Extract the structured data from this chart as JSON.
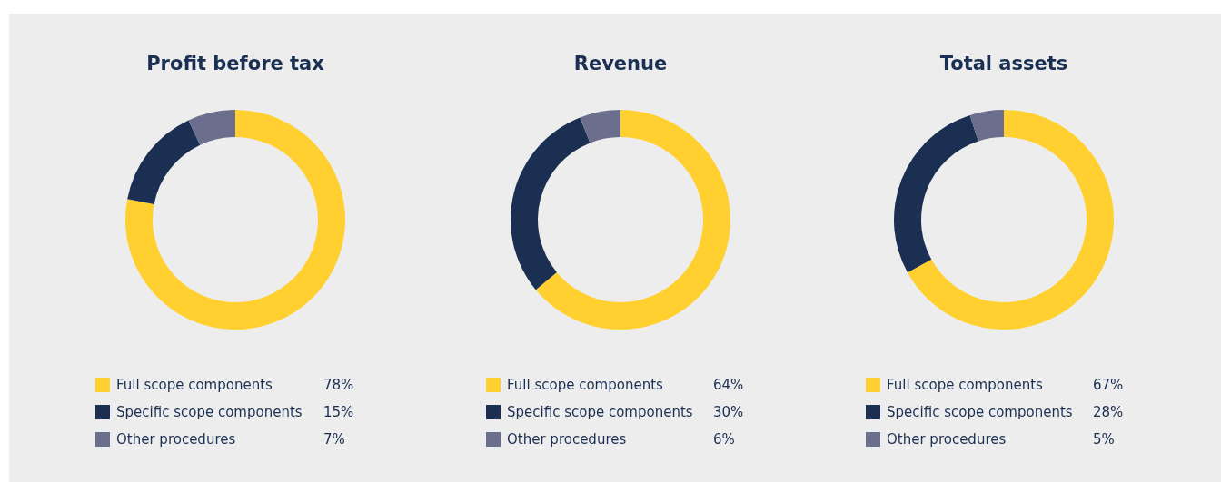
{
  "chart_data": [
    {
      "type": "donut",
      "title": "Profit before tax",
      "categories": [
        "Full scope components",
        "Specific scope components",
        "Other procedures"
      ],
      "values": [
        78,
        15,
        7
      ],
      "value_labels": [
        "78%",
        "15%",
        "7%"
      ],
      "colors": [
        "#ffd030",
        "#1a2f52",
        "#6b6e8c"
      ],
      "legend": "bottom"
    },
    {
      "type": "donut",
      "title": "Revenue",
      "categories": [
        "Full scope components",
        "Specific scope components",
        "Other procedures"
      ],
      "values": [
        64,
        30,
        6
      ],
      "value_labels": [
        "64%",
        "30%",
        "6%"
      ],
      "colors": [
        "#ffd030",
        "#1a2f52",
        "#6b6e8c"
      ],
      "legend": "bottom"
    },
    {
      "type": "donut",
      "title": "Total assets",
      "categories": [
        "Full scope components",
        "Specific scope components",
        "Other procedures"
      ],
      "values": [
        67,
        28,
        5
      ],
      "value_labels": [
        "67%",
        "28%",
        "5%"
      ],
      "colors": [
        "#ffd030",
        "#1a2f52",
        "#6b6e8c"
      ],
      "legend": "bottom"
    }
  ]
}
